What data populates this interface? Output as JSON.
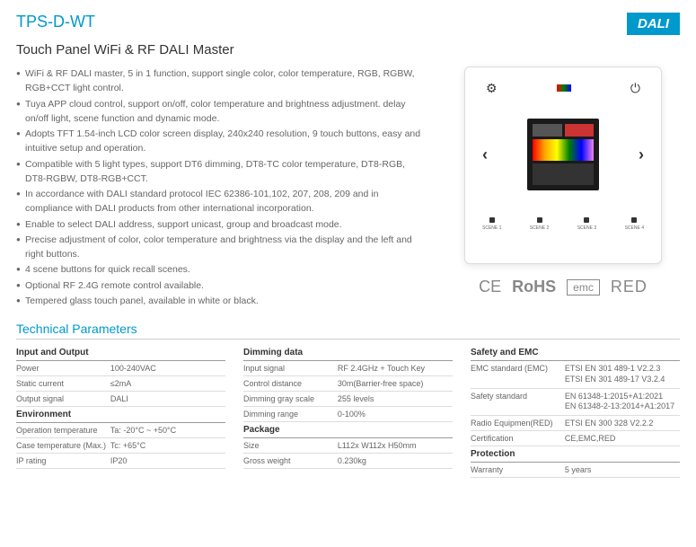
{
  "model": "TPS-D-WT",
  "badge": "DALI",
  "title": "Touch Panel WiFi & RF DALI Master",
  "features": [
    "WiFi & RF DALI master, 5 in 1 function, support single color, color temperature, RGB, RGBW, RGB+CCT light control.",
    "Tuya APP cloud control, support on/off, color temperature and brightness adjustment. delay on/off light, scene function and dynamic mode.",
    "Adopts TFT 1.54-inch LCD color screen display, 240x240 resolution, 9 touch buttons, easy and intuitive setup and operation.",
    "Compatible with 5 light types, support DT6 dimming, DT8-TC color temperature, DT8-RGB, DT8-RGBW, DT8-RGB+CCT.",
    "In accordance with DALI standard protocol IEC 62386-101,102, 207, 208, 209 and in compliance with DALI products from other international incorporation.",
    "Enable to select DALI address, support unicast, group and broadcast mode.",
    "Precise adjustment of color, color temperature and brightness via the display and the left and right buttons.",
    "4 scene buttons for quick recall scenes.",
    "Optional RF 2.4G remote control available.",
    "Tempered glass touch panel, available in white or black."
  ],
  "scenes": [
    "SCENE 1",
    "SCENE 2",
    "SCENE 3",
    "SCENE 4"
  ],
  "certs": {
    "ce": "CE",
    "rohs": "RoHS",
    "emc": "emc",
    "red": "RED"
  },
  "tech_title": "Technical Parameters",
  "cols": [
    [
      {
        "group": "Input and Output"
      },
      {
        "label": "Power",
        "val": "100-240VAC"
      },
      {
        "label": "Static current",
        "val": "≤2mA"
      },
      {
        "label": "Output signal",
        "val": "DALI"
      },
      {
        "group": "Environment"
      },
      {
        "label": "Operation temperature",
        "val": "Ta: -20°C ~ +50°C"
      },
      {
        "label": "Case temperature (Max.)",
        "val": "Tc: +65°C"
      },
      {
        "label": "IP rating",
        "val": "IP20"
      }
    ],
    [
      {
        "group": "Dimming data"
      },
      {
        "label": "Input signal",
        "val": "RF 2.4GHz + Touch Key"
      },
      {
        "label": "Control distance",
        "val": "30m(Barrier-free space)"
      },
      {
        "label": "Dimming gray scale",
        "val": "255 levels"
      },
      {
        "label": "Dimming range",
        "val": "0-100%"
      },
      {
        "group": "Package"
      },
      {
        "label": "Size",
        "val": "L112x W112x H50mm"
      },
      {
        "label": "Gross weight",
        "val": "0.230kg"
      }
    ],
    [
      {
        "group": "Safety and EMC"
      },
      {
        "label": "EMC standard (EMC)",
        "stack": [
          "ETSI EN 301 489-1 V2.2.3",
          "ETSI EN 301 489-17 V3.2.4"
        ]
      },
      {
        "label": "Safety standard",
        "stack": [
          "EN 61348-1:2015+A1:2021",
          "EN 61348-2-13:2014+A1:2017"
        ]
      },
      {
        "label": "Radio Equipmen(RED)",
        "val": "ETSI EN 300 328 V2.2.2"
      },
      {
        "label": "Certification",
        "val": "CE,EMC,RED"
      },
      {
        "group": "Protection"
      },
      {
        "label": "Warranty",
        "val": "5 years"
      }
    ]
  ]
}
